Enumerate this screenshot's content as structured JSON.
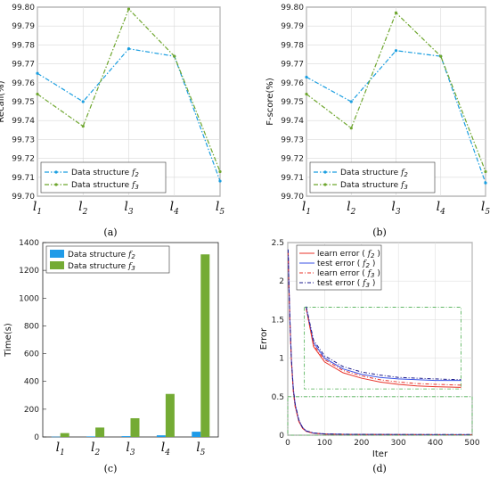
{
  "chart_data": [
    {
      "panel": "(a)",
      "type": "line",
      "categories": [
        "l1",
        "l2",
        "l3",
        "l4",
        "l5"
      ],
      "ylabel": "Recall(%)",
      "ylim": [
        99.7,
        99.8
      ],
      "yticks": [
        "99.70",
        "99.71",
        "99.72",
        "99.73",
        "99.74",
        "99.75",
        "99.76",
        "99.77",
        "99.78",
        "99.79",
        "99.80"
      ],
      "grid": true,
      "legend_position": "bottom-left",
      "series": [
        {
          "name": "Data structure f2",
          "color": "#1a9ee0",
          "values": [
            99.765,
            99.75,
            99.778,
            99.774,
            99.708
          ]
        },
        {
          "name": "Data structure f3",
          "color": "#6ea62e",
          "values": [
            99.754,
            99.737,
            99.799,
            99.774,
            99.713
          ]
        }
      ]
    },
    {
      "panel": "(b)",
      "type": "line",
      "categories": [
        "l1",
        "l2",
        "l3",
        "l4",
        "l5"
      ],
      "ylabel": "F-score(%)",
      "ylim": [
        99.7,
        99.8
      ],
      "yticks": [
        "99.70",
        "99.71",
        "99.72",
        "99.73",
        "99.74",
        "99.75",
        "99.76",
        "99.77",
        "99.78",
        "99.79",
        "99.80"
      ],
      "grid": true,
      "legend_position": "bottom-left",
      "series": [
        {
          "name": "Data structure f2",
          "color": "#1a9ee0",
          "values": [
            99.763,
            99.75,
            99.777,
            99.774,
            99.707
          ]
        },
        {
          "name": "Data structure f3",
          "color": "#6ea62e",
          "values": [
            99.754,
            99.736,
            99.797,
            99.774,
            99.713
          ]
        }
      ]
    },
    {
      "panel": "(c)",
      "type": "bar",
      "categories": [
        "l1",
        "l2",
        "l3",
        "l4",
        "l5"
      ],
      "ylabel": "Time(s)",
      "ylim": [
        0,
        1400
      ],
      "yticks": [
        "0",
        "200",
        "400",
        "600",
        "800",
        "1000",
        "1200",
        "1400"
      ],
      "legend_position": "top-left",
      "series": [
        {
          "name": "Data structure f2",
          "color": "#1f9be8",
          "values": [
            2,
            4,
            6,
            12,
            38
          ]
        },
        {
          "name": "Data structure f3",
          "color": "#74ab34",
          "values": [
            28,
            68,
            135,
            310,
            1315
          ]
        }
      ]
    },
    {
      "panel": "(d)",
      "type": "line",
      "xlabel": "Iter",
      "ylabel": "Error",
      "xlim": [
        0,
        500
      ],
      "ylim": [
        0,
        2.5
      ],
      "xticks": [
        "0",
        "100",
        "200",
        "300",
        "400",
        "500"
      ],
      "yticks": [
        "0",
        "0.5",
        "1",
        "1.5",
        "2",
        "2.5"
      ],
      "grid": true,
      "legend_position": "top-right",
      "x": [
        1,
        3,
        6,
        10,
        15,
        20,
        30,
        40,
        50,
        70,
        100,
        150,
        200,
        300,
        400,
        470,
        500
      ],
      "series": [
        {
          "name": "learn error (f2)",
          "color": "#e8332a",
          "style": "solid",
          "values": [
            2.38,
            1.95,
            1.45,
            0.95,
            0.58,
            0.38,
            0.18,
            0.09,
            0.05,
            0.025,
            0.014,
            0.01,
            0.008,
            0.007,
            0.006,
            0.006,
            0.006
          ]
        },
        {
          "name": "test error (f2)",
          "color": "#3a52e6",
          "style": "solid",
          "values": [
            2.4,
            1.97,
            1.47,
            0.97,
            0.6,
            0.4,
            0.19,
            0.1,
            0.055,
            0.028,
            0.016,
            0.012,
            0.01,
            0.008,
            0.007,
            0.007,
            0.007
          ]
        },
        {
          "name": "learn error (f3)",
          "color": "#e8332a",
          "style": "dashdot",
          "values": [
            2.37,
            1.94,
            1.44,
            0.94,
            0.57,
            0.37,
            0.18,
            0.09,
            0.05,
            0.026,
            0.015,
            0.011,
            0.009,
            0.007,
            0.007,
            0.006,
            0.006
          ]
        },
        {
          "name": "test error (f3)",
          "color": "#1a1a8c",
          "style": "dashdot",
          "values": [
            2.41,
            1.98,
            1.48,
            0.98,
            0.61,
            0.41,
            0.2,
            0.1,
            0.056,
            0.029,
            0.017,
            0.013,
            0.011,
            0.009,
            0.008,
            0.008,
            0.008
          ]
        }
      ],
      "inset": {
        "border_color": "#4caf50",
        "x": [
          50,
          70,
          100,
          150,
          200,
          250,
          300,
          350,
          400,
          470
        ],
        "series": [
          {
            "values": [
              1.65,
              1.15,
              0.95,
              0.81,
              0.74,
              0.69,
              0.66,
              0.64,
              0.63,
              0.62
            ]
          },
          {
            "values": [
              1.66,
              1.2,
              1.0,
              0.86,
              0.79,
              0.75,
              0.73,
              0.72,
              0.71,
              0.71
            ]
          },
          {
            "values": [
              1.64,
              1.17,
              0.98,
              0.84,
              0.77,
              0.72,
              0.69,
              0.67,
              0.66,
              0.65
            ]
          },
          {
            "values": [
              1.67,
              1.23,
              1.03,
              0.89,
              0.82,
              0.78,
              0.75,
              0.74,
              0.73,
              0.72
            ]
          }
        ]
      }
    }
  ],
  "captions": [
    "(a)",
    "(b)",
    "(c)",
    "(d)"
  ]
}
